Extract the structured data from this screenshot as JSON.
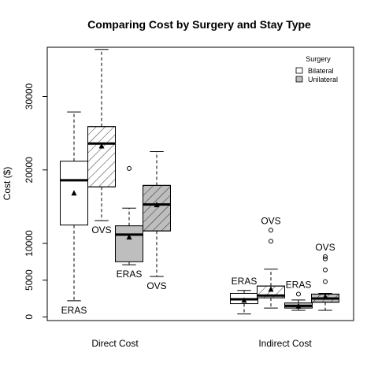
{
  "chart_data": {
    "type": "boxplot",
    "title": "Comparing Cost by Surgery and Stay Type",
    "ylabel": "Cost ($)",
    "xlabel": "",
    "ylim": [
      -500,
      36700
    ],
    "yticks": [
      0,
      5000,
      10000,
      20000,
      30000
    ],
    "grid": false,
    "groups": [
      "Direct Cost",
      "Indirect Cost"
    ],
    "legend": {
      "title": "Surgery",
      "placement": "top-right",
      "entries": [
        {
          "name": "Bilateral",
          "fill": "#ffffff",
          "hatched": false
        },
        {
          "name": "Unilateral",
          "fill": "#bebebe",
          "hatched": false
        }
      ]
    },
    "colors": {
      "bilateral": "#ffffff",
      "unilateral": "#bebebe",
      "stroke": "#000000"
    },
    "boxes": [
      {
        "group": "Direct Cost",
        "surgery": "Bilateral",
        "stay": "ERAS",
        "hatched": false,
        "fill": "#ffffff",
        "whisker_low": 2200,
        "q1": 12500,
        "median": 18600,
        "q3": 21200,
        "whisker_high": 27900,
        "mean": 16900,
        "outliers": [],
        "label": "ERAS",
        "label_position": "below"
      },
      {
        "group": "Direct Cost",
        "surgery": "Bilateral",
        "stay": "OVS",
        "hatched": true,
        "fill": "#ffffff",
        "whisker_low": 13100,
        "q1": 17700,
        "median": 23600,
        "q3": 25900,
        "whisker_high": 36400,
        "mean": 23300,
        "outliers": [],
        "label": "OVS",
        "label_position": "below"
      },
      {
        "group": "Direct Cost",
        "surgery": "Unilateral",
        "stay": "ERAS",
        "hatched": false,
        "fill": "#bebebe",
        "whisker_low": 7100,
        "q1": 7500,
        "median": 11200,
        "q3": 12400,
        "whisker_high": 14800,
        "mean": 10900,
        "outliers": [
          20200
        ],
        "label": "ERAS",
        "label_position": "below"
      },
      {
        "group": "Direct Cost",
        "surgery": "Unilateral",
        "stay": "OVS",
        "hatched": true,
        "fill": "#bebebe",
        "whisker_low": 5500,
        "q1": 11700,
        "median": 15300,
        "q3": 17900,
        "whisker_high": 22500,
        "mean": 15300,
        "outliers": [],
        "label": "OVS",
        "label_position": "below"
      },
      {
        "group": "Indirect Cost",
        "surgery": "Bilateral",
        "stay": "ERAS",
        "hatched": false,
        "fill": "#ffffff",
        "whisker_low": 400,
        "q1": 1800,
        "median": 2400,
        "q3": 3200,
        "whisker_high": 3600,
        "mean": 2300,
        "outliers": [],
        "label": "ERAS",
        "label_position": "above"
      },
      {
        "group": "Indirect Cost",
        "surgery": "Bilateral",
        "stay": "OVS",
        "hatched": true,
        "fill": "#ffffff",
        "whisker_low": 1200,
        "q1": 2600,
        "median": 2900,
        "q3": 4200,
        "whisker_high": 6500,
        "mean": 3800,
        "outliers": [
          10300,
          11800
        ],
        "label": "OVS",
        "label_position": "above"
      },
      {
        "group": "Indirect Cost",
        "surgery": "Unilateral",
        "stay": "ERAS",
        "hatched": false,
        "fill": "#bebebe",
        "whisker_low": 900,
        "q1": 1200,
        "median": 1500,
        "q3": 1900,
        "whisker_high": 2300,
        "mean": 1500,
        "outliers": [
          3100
        ],
        "label": "ERAS",
        "label_position": "above"
      },
      {
        "group": "Indirect Cost",
        "surgery": "Unilateral",
        "stay": "OVS",
        "hatched": true,
        "fill": "#bebebe",
        "whisker_low": 900,
        "q1": 2000,
        "median": 2500,
        "q3": 3100,
        "whisker_high": 3200,
        "mean": 2800,
        "outliers": [
          4800,
          6400,
          7900,
          8200
        ],
        "label": "OVS",
        "label_position": "above"
      }
    ]
  }
}
